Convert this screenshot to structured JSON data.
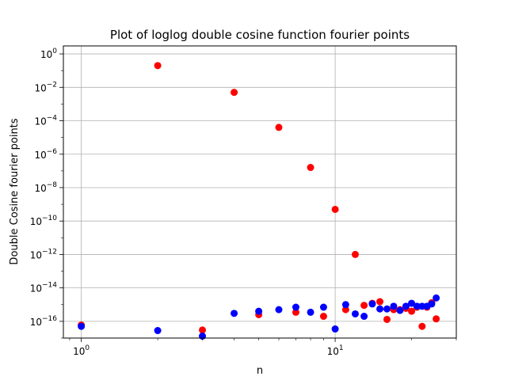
{
  "chart_data": {
    "type": "scatter",
    "title": "Plot of loglog double cosine function fourier points",
    "xlabel": "n",
    "ylabel": "Double Cosine fourier points",
    "xscale": "log",
    "yscale": "log",
    "xlim": [
      0.85,
      30
    ],
    "ylim": [
      1e-17,
      3.0
    ],
    "grid": true,
    "x_tick_labels": [
      {
        "value": 1,
        "base": "10",
        "exp": "0"
      },
      {
        "value": 10,
        "base": "10",
        "exp": "1"
      }
    ],
    "y_tick_labels": [
      {
        "value": 1,
        "base": "10",
        "exp": "0"
      },
      {
        "value": 0.01,
        "base": "10",
        "exp": "−2"
      },
      {
        "value": 0.0001,
        "base": "10",
        "exp": "−4"
      },
      {
        "value": 1e-06,
        "base": "10",
        "exp": "−6"
      },
      {
        "value": 1e-08,
        "base": "10",
        "exp": "−8"
      },
      {
        "value": 1e-10,
        "base": "10",
        "exp": "−10"
      },
      {
        "value": 1e-12,
        "base": "10",
        "exp": "−12"
      },
      {
        "value": 1e-14,
        "base": "10",
        "exp": "−14"
      },
      {
        "value": 1e-16,
        "base": "10",
        "exp": "−16"
      }
    ],
    "series": [
      {
        "color": "#ff0000",
        "points": [
          [
            1,
            6e-17
          ],
          [
            2,
            0.2
          ],
          [
            3,
            3e-17
          ],
          [
            4,
            0.005
          ],
          [
            5,
            2.5e-16
          ],
          [
            6,
            4e-05
          ],
          [
            7,
            3.5e-16
          ],
          [
            8,
            1.6e-07
          ],
          [
            9,
            2e-16
          ],
          [
            10,
            5e-10
          ],
          [
            11,
            5e-16
          ],
          [
            12,
            1e-12
          ],
          [
            13,
            9e-16
          ],
          [
            14,
            1.2e-15
          ],
          [
            15,
            1.5e-15
          ],
          [
            16,
            1.3e-16
          ],
          [
            17,
            5e-16
          ],
          [
            18,
            5e-16
          ],
          [
            19,
            6e-16
          ],
          [
            20,
            4e-16
          ],
          [
            21,
            7e-16
          ],
          [
            22,
            5e-17
          ],
          [
            23,
            7e-16
          ],
          [
            24,
            1.3e-15
          ],
          [
            25,
            1.4e-16
          ]
        ]
      },
      {
        "color": "#0000ff",
        "points": [
          [
            1,
            5e-17
          ],
          [
            2,
            2.8e-17
          ],
          [
            3,
            1.3e-17
          ],
          [
            4,
            3e-16
          ],
          [
            5,
            4e-16
          ],
          [
            6,
            5e-16
          ],
          [
            7,
            7e-16
          ],
          [
            8,
            3.5e-16
          ],
          [
            9,
            7e-16
          ],
          [
            10,
            3.5e-17
          ],
          [
            11,
            1e-15
          ],
          [
            12,
            2.8e-16
          ],
          [
            13,
            2e-16
          ],
          [
            14,
            1.1e-15
          ],
          [
            15,
            5.5e-16
          ],
          [
            16,
            5.5e-16
          ],
          [
            17,
            8e-16
          ],
          [
            18,
            4.5e-16
          ],
          [
            19,
            8e-16
          ],
          [
            20,
            1.2e-15
          ],
          [
            21,
            8e-16
          ],
          [
            22,
            8e-16
          ],
          [
            23,
            8e-16
          ],
          [
            24,
            1.1e-15
          ],
          [
            25,
            2.5e-15
          ]
        ]
      }
    ]
  }
}
